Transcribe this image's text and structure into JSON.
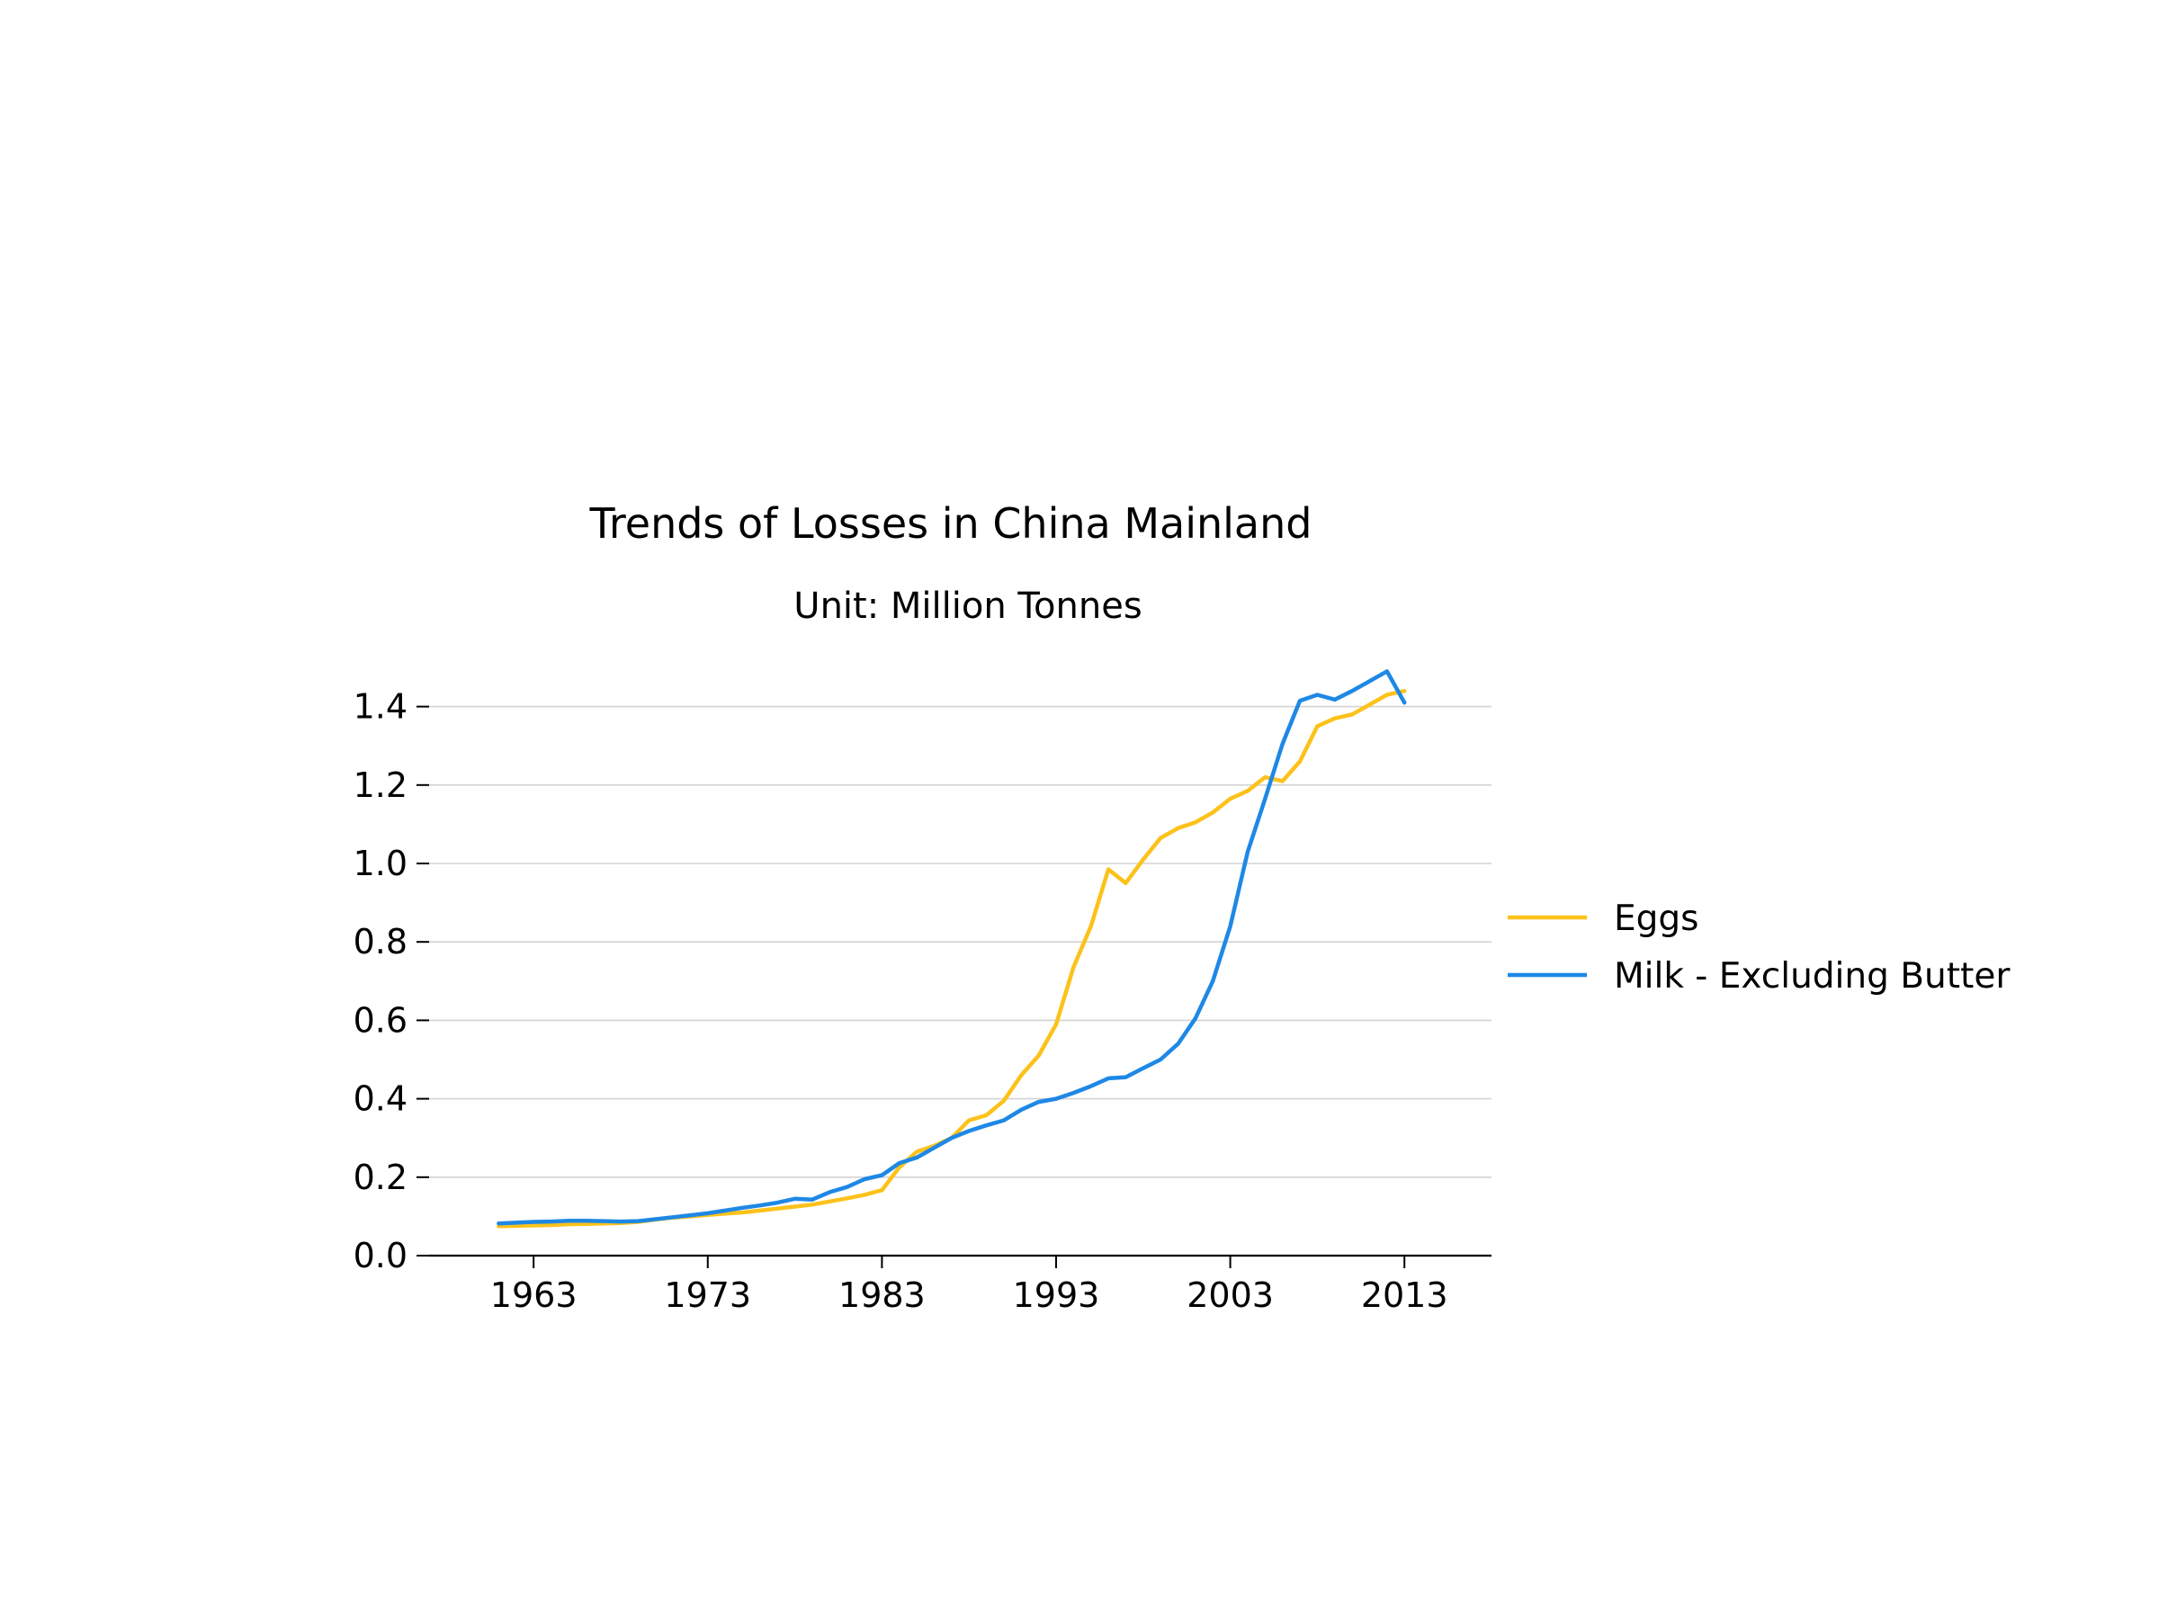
{
  "chart_data": {
    "type": "line",
    "title": "Trends of Losses in China Mainland",
    "subtitle": "Unit: Million Tonnes",
    "xlabel": "",
    "ylabel": "",
    "xlim": [
      1957,
      2018
    ],
    "ylim": [
      0,
      1.5
    ],
    "x_ticks": [
      1963,
      1973,
      1983,
      1993,
      2003,
      2013
    ],
    "y_ticks": [
      0.0,
      0.2,
      0.4,
      0.6,
      0.8,
      1.0,
      1.2,
      1.4
    ],
    "y_tick_labels": [
      "0.0",
      "0.2",
      "0.4",
      "0.6",
      "0.8",
      "1.0",
      "1.2",
      "1.4"
    ],
    "grid": "horizontal",
    "legend_position": "right",
    "x": [
      1961,
      1962,
      1963,
      1964,
      1965,
      1966,
      1967,
      1968,
      1969,
      1970,
      1971,
      1972,
      1973,
      1974,
      1975,
      1976,
      1977,
      1978,
      1979,
      1980,
      1981,
      1982,
      1983,
      1984,
      1985,
      1986,
      1987,
      1988,
      1989,
      1990,
      1991,
      1992,
      1993,
      1994,
      1995,
      1996,
      1997,
      1998,
      1999,
      2000,
      2001,
      2002,
      2003,
      2004,
      2005,
      2006,
      2007,
      2008,
      2009,
      2010,
      2011,
      2012,
      2013
    ],
    "series": [
      {
        "name": "Eggs",
        "color": "#fcc21b",
        "values": [
          0.075,
          0.076,
          0.077,
          0.078,
          0.08,
          0.081,
          0.082,
          0.083,
          0.086,
          0.092,
          0.097,
          0.1,
          0.104,
          0.107,
          0.11,
          0.115,
          0.12,
          0.125,
          0.13,
          0.138,
          0.146,
          0.155,
          0.167,
          0.225,
          0.265,
          0.28,
          0.3,
          0.345,
          0.358,
          0.395,
          0.46,
          0.51,
          0.59,
          0.735,
          0.84,
          0.985,
          0.95,
          1.01,
          1.065,
          1.09,
          1.105,
          1.13,
          1.165,
          1.185,
          1.22,
          1.21,
          1.26,
          1.35,
          1.37,
          1.38,
          1.405,
          1.43,
          1.44
        ]
      },
      {
        "name": "Milk - Excluding Butter",
        "color": "#1e88e5",
        "values": [
          0.082,
          0.084,
          0.086,
          0.087,
          0.089,
          0.089,
          0.088,
          0.087,
          0.088,
          0.093,
          0.098,
          0.103,
          0.108,
          0.115,
          0.122,
          0.128,
          0.135,
          0.145,
          0.143,
          0.162,
          0.175,
          0.195,
          0.205,
          0.236,
          0.25,
          0.275,
          0.3,
          0.318,
          0.332,
          0.345,
          0.372,
          0.392,
          0.4,
          0.415,
          0.432,
          0.452,
          0.455,
          0.478,
          0.5,
          0.54,
          0.605,
          0.7,
          0.84,
          1.03,
          1.165,
          1.305,
          1.415,
          1.43,
          1.418,
          1.44,
          1.465,
          1.49,
          1.41
        ]
      }
    ]
  }
}
